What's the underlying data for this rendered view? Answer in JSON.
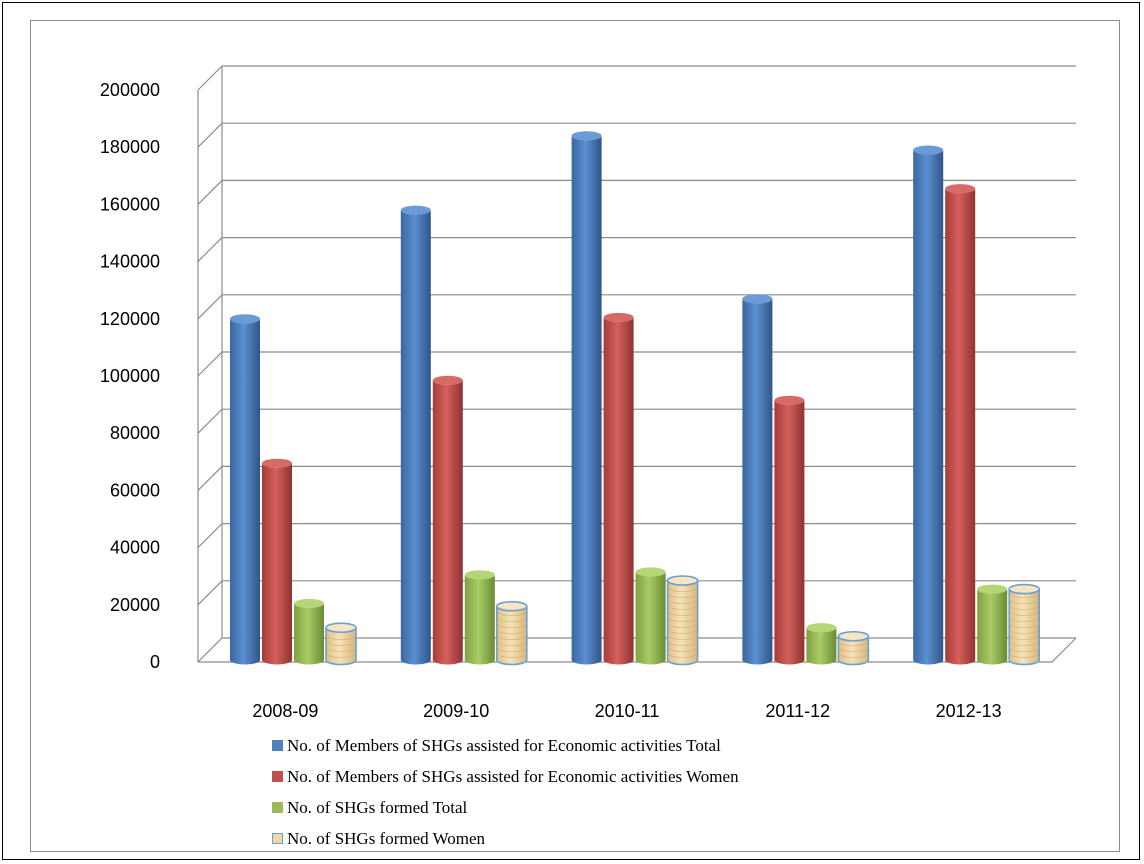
{
  "chart_data": {
    "type": "bar",
    "title": "",
    "xlabel": "",
    "ylabel": "",
    "ylim": [
      0,
      200000
    ],
    "yticks": [
      "0",
      "20000",
      "40000",
      "60000",
      "80000",
      "100000",
      "120000",
      "140000",
      "160000",
      "180000",
      "200000"
    ],
    "categories": [
      "2008-09",
      "2009-10",
      "2010-11",
      "2011-12",
      "2012-13"
    ],
    "series": [
      {
        "name": "No. of Members of SHGs assisted for Economic activities Total",
        "values": [
          120000,
          158000,
          184000,
          127000,
          179000
        ],
        "color": "#4f81bd"
      },
      {
        "name": "No. of Members of SHGs assisted for Economic activities Women",
        "values": [
          69500,
          98500,
          120500,
          91500,
          165500
        ],
        "color": "#c0504d"
      },
      {
        "name": "No. of SHGs formed Total",
        "values": [
          20500,
          30500,
          31500,
          12000,
          25500
        ],
        "color": "#9bbb59"
      },
      {
        "name": "No. of SHGs formed Women",
        "values": [
          12000,
          19500,
          28500,
          9000,
          25500
        ],
        "color": "#f3d7a2"
      }
    ],
    "grid": true,
    "legend_position": "bottom"
  }
}
